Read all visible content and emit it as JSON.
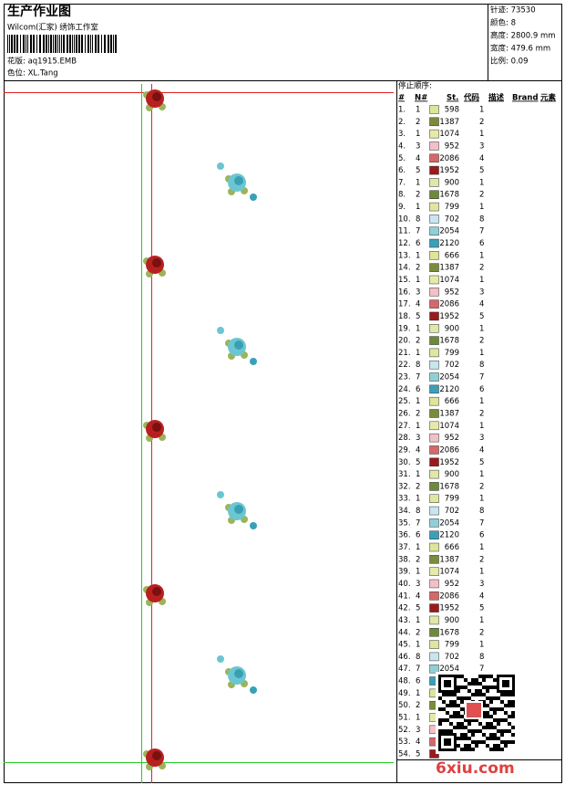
{
  "header": {
    "title": "生产作业图",
    "studio": "Wilcom(汇家) 绣饰工作室",
    "design": "花版: aq1915.EMB",
    "colorway": "色位: XL.Tang"
  },
  "info": [
    "针迹: 73530",
    "颜色: 8",
    "高度: 2800.9 mm",
    "宽度: 479.6 mm",
    "比例: 0.09"
  ],
  "table": {
    "title": "停止顺序:",
    "columns": [
      "#",
      "N#",
      "St.",
      "代码",
      "描述",
      "Brand",
      "元素"
    ],
    "rows": [
      {
        "no": "1.",
        "n": "1",
        "st": "598",
        "code": "1",
        "color": "#dde59a"
      },
      {
        "no": "2.",
        "n": "2",
        "st": "1387",
        "code": "2",
        "color": "#7a8c3a"
      },
      {
        "no": "3.",
        "n": "1",
        "st": "1074",
        "code": "1",
        "color": "#e6eaa8"
      },
      {
        "no": "4.",
        "n": "3",
        "st": "952",
        "code": "3",
        "color": "#f2c0c8"
      },
      {
        "no": "5.",
        "n": "4",
        "st": "2086",
        "code": "4",
        "color": "#d4686a"
      },
      {
        "no": "6.",
        "n": "5",
        "st": "1952",
        "code": "5",
        "color": "#9a1b1b"
      },
      {
        "no": "7.",
        "n": "1",
        "st": "900",
        "code": "1",
        "color": "#e0e7a8"
      },
      {
        "no": "8.",
        "n": "2",
        "st": "1678",
        "code": "2",
        "color": "#6c8a3a"
      },
      {
        "no": "9.",
        "n": "1",
        "st": "799",
        "code": "1",
        "color": "#dfe6a0"
      },
      {
        "no": "10.",
        "n": "8",
        "st": "702",
        "code": "8",
        "color": "#c8e6ee"
      },
      {
        "no": "11.",
        "n": "7",
        "st": "2054",
        "code": "7",
        "color": "#8fd0d8"
      },
      {
        "no": "12.",
        "n": "6",
        "st": "2120",
        "code": "6",
        "color": "#3aa0b8"
      },
      {
        "no": "13.",
        "n": "1",
        "st": "666",
        "code": "1",
        "color": "#dde59a"
      },
      {
        "no": "14.",
        "n": "2",
        "st": "1387",
        "code": "2",
        "color": "#7a8c3a"
      },
      {
        "no": "15.",
        "n": "1",
        "st": "1074",
        "code": "1",
        "color": "#e6eaa8"
      },
      {
        "no": "16.",
        "n": "3",
        "st": "952",
        "code": "3",
        "color": "#f2c0c8"
      },
      {
        "no": "17.",
        "n": "4",
        "st": "2086",
        "code": "4",
        "color": "#d4686a"
      },
      {
        "no": "18.",
        "n": "5",
        "st": "1952",
        "code": "5",
        "color": "#9a1b1b"
      },
      {
        "no": "19.",
        "n": "1",
        "st": "900",
        "code": "1",
        "color": "#e0e7a8"
      },
      {
        "no": "20.",
        "n": "2",
        "st": "1678",
        "code": "2",
        "color": "#6c8a3a"
      },
      {
        "no": "21.",
        "n": "1",
        "st": "799",
        "code": "1",
        "color": "#dfe6a0"
      },
      {
        "no": "22.",
        "n": "8",
        "st": "702",
        "code": "8",
        "color": "#c8e6ee"
      },
      {
        "no": "23.",
        "n": "7",
        "st": "2054",
        "code": "7",
        "color": "#8fd0d8"
      },
      {
        "no": "24.",
        "n": "6",
        "st": "2120",
        "code": "6",
        "color": "#3aa0b8"
      },
      {
        "no": "25.",
        "n": "1",
        "st": "666",
        "code": "1",
        "color": "#dde59a"
      },
      {
        "no": "26.",
        "n": "2",
        "st": "1387",
        "code": "2",
        "color": "#7a8c3a"
      },
      {
        "no": "27.",
        "n": "1",
        "st": "1074",
        "code": "1",
        "color": "#e6eaa8"
      },
      {
        "no": "28.",
        "n": "3",
        "st": "952",
        "code": "3",
        "color": "#f2c0c8"
      },
      {
        "no": "29.",
        "n": "4",
        "st": "2086",
        "code": "4",
        "color": "#d4686a"
      },
      {
        "no": "30.",
        "n": "5",
        "st": "1952",
        "code": "5",
        "color": "#9a1b1b"
      },
      {
        "no": "31.",
        "n": "1",
        "st": "900",
        "code": "1",
        "color": "#e0e7a8"
      },
      {
        "no": "32.",
        "n": "2",
        "st": "1678",
        "code": "2",
        "color": "#6c8a3a"
      },
      {
        "no": "33.",
        "n": "1",
        "st": "799",
        "code": "1",
        "color": "#dfe6a0"
      },
      {
        "no": "34.",
        "n": "8",
        "st": "702",
        "code": "8",
        "color": "#c8e6ee"
      },
      {
        "no": "35.",
        "n": "7",
        "st": "2054",
        "code": "7",
        "color": "#8fd0d8"
      },
      {
        "no": "36.",
        "n": "6",
        "st": "2120",
        "code": "6",
        "color": "#3aa0b8"
      },
      {
        "no": "37.",
        "n": "1",
        "st": "666",
        "code": "1",
        "color": "#dde59a"
      },
      {
        "no": "38.",
        "n": "2",
        "st": "1387",
        "code": "2",
        "color": "#7a8c3a"
      },
      {
        "no": "39.",
        "n": "1",
        "st": "1074",
        "code": "1",
        "color": "#e6eaa8"
      },
      {
        "no": "40.",
        "n": "3",
        "st": "952",
        "code": "3",
        "color": "#f2c0c8"
      },
      {
        "no": "41.",
        "n": "4",
        "st": "2086",
        "code": "4",
        "color": "#d4686a"
      },
      {
        "no": "42.",
        "n": "5",
        "st": "1952",
        "code": "5",
        "color": "#9a1b1b"
      },
      {
        "no": "43.",
        "n": "1",
        "st": "900",
        "code": "1",
        "color": "#e0e7a8"
      },
      {
        "no": "44.",
        "n": "2",
        "st": "1678",
        "code": "2",
        "color": "#6c8a3a"
      },
      {
        "no": "45.",
        "n": "1",
        "st": "799",
        "code": "1",
        "color": "#dfe6a0"
      },
      {
        "no": "46.",
        "n": "8",
        "st": "702",
        "code": "8",
        "color": "#c8e6ee"
      },
      {
        "no": "47.",
        "n": "7",
        "st": "2054",
        "code": "7",
        "color": "#8fd0d8"
      },
      {
        "no": "48.",
        "n": "6",
        "color": "#3aa0b8"
      },
      {
        "no": "49.",
        "n": "1",
        "color": "#dde59a"
      },
      {
        "no": "50.",
        "n": "2",
        "color": "#7a8c3a"
      },
      {
        "no": "51.",
        "n": "1",
        "color": "#e6eaa8"
      },
      {
        "no": "52.",
        "n": "3",
        "color": "#f2c0c8"
      },
      {
        "no": "53.",
        "n": "4",
        "color": "#d4686a"
      },
      {
        "no": "54.",
        "n": "5",
        "color": "#9a1b1b"
      }
    ]
  },
  "watermark": "6xiu.com"
}
